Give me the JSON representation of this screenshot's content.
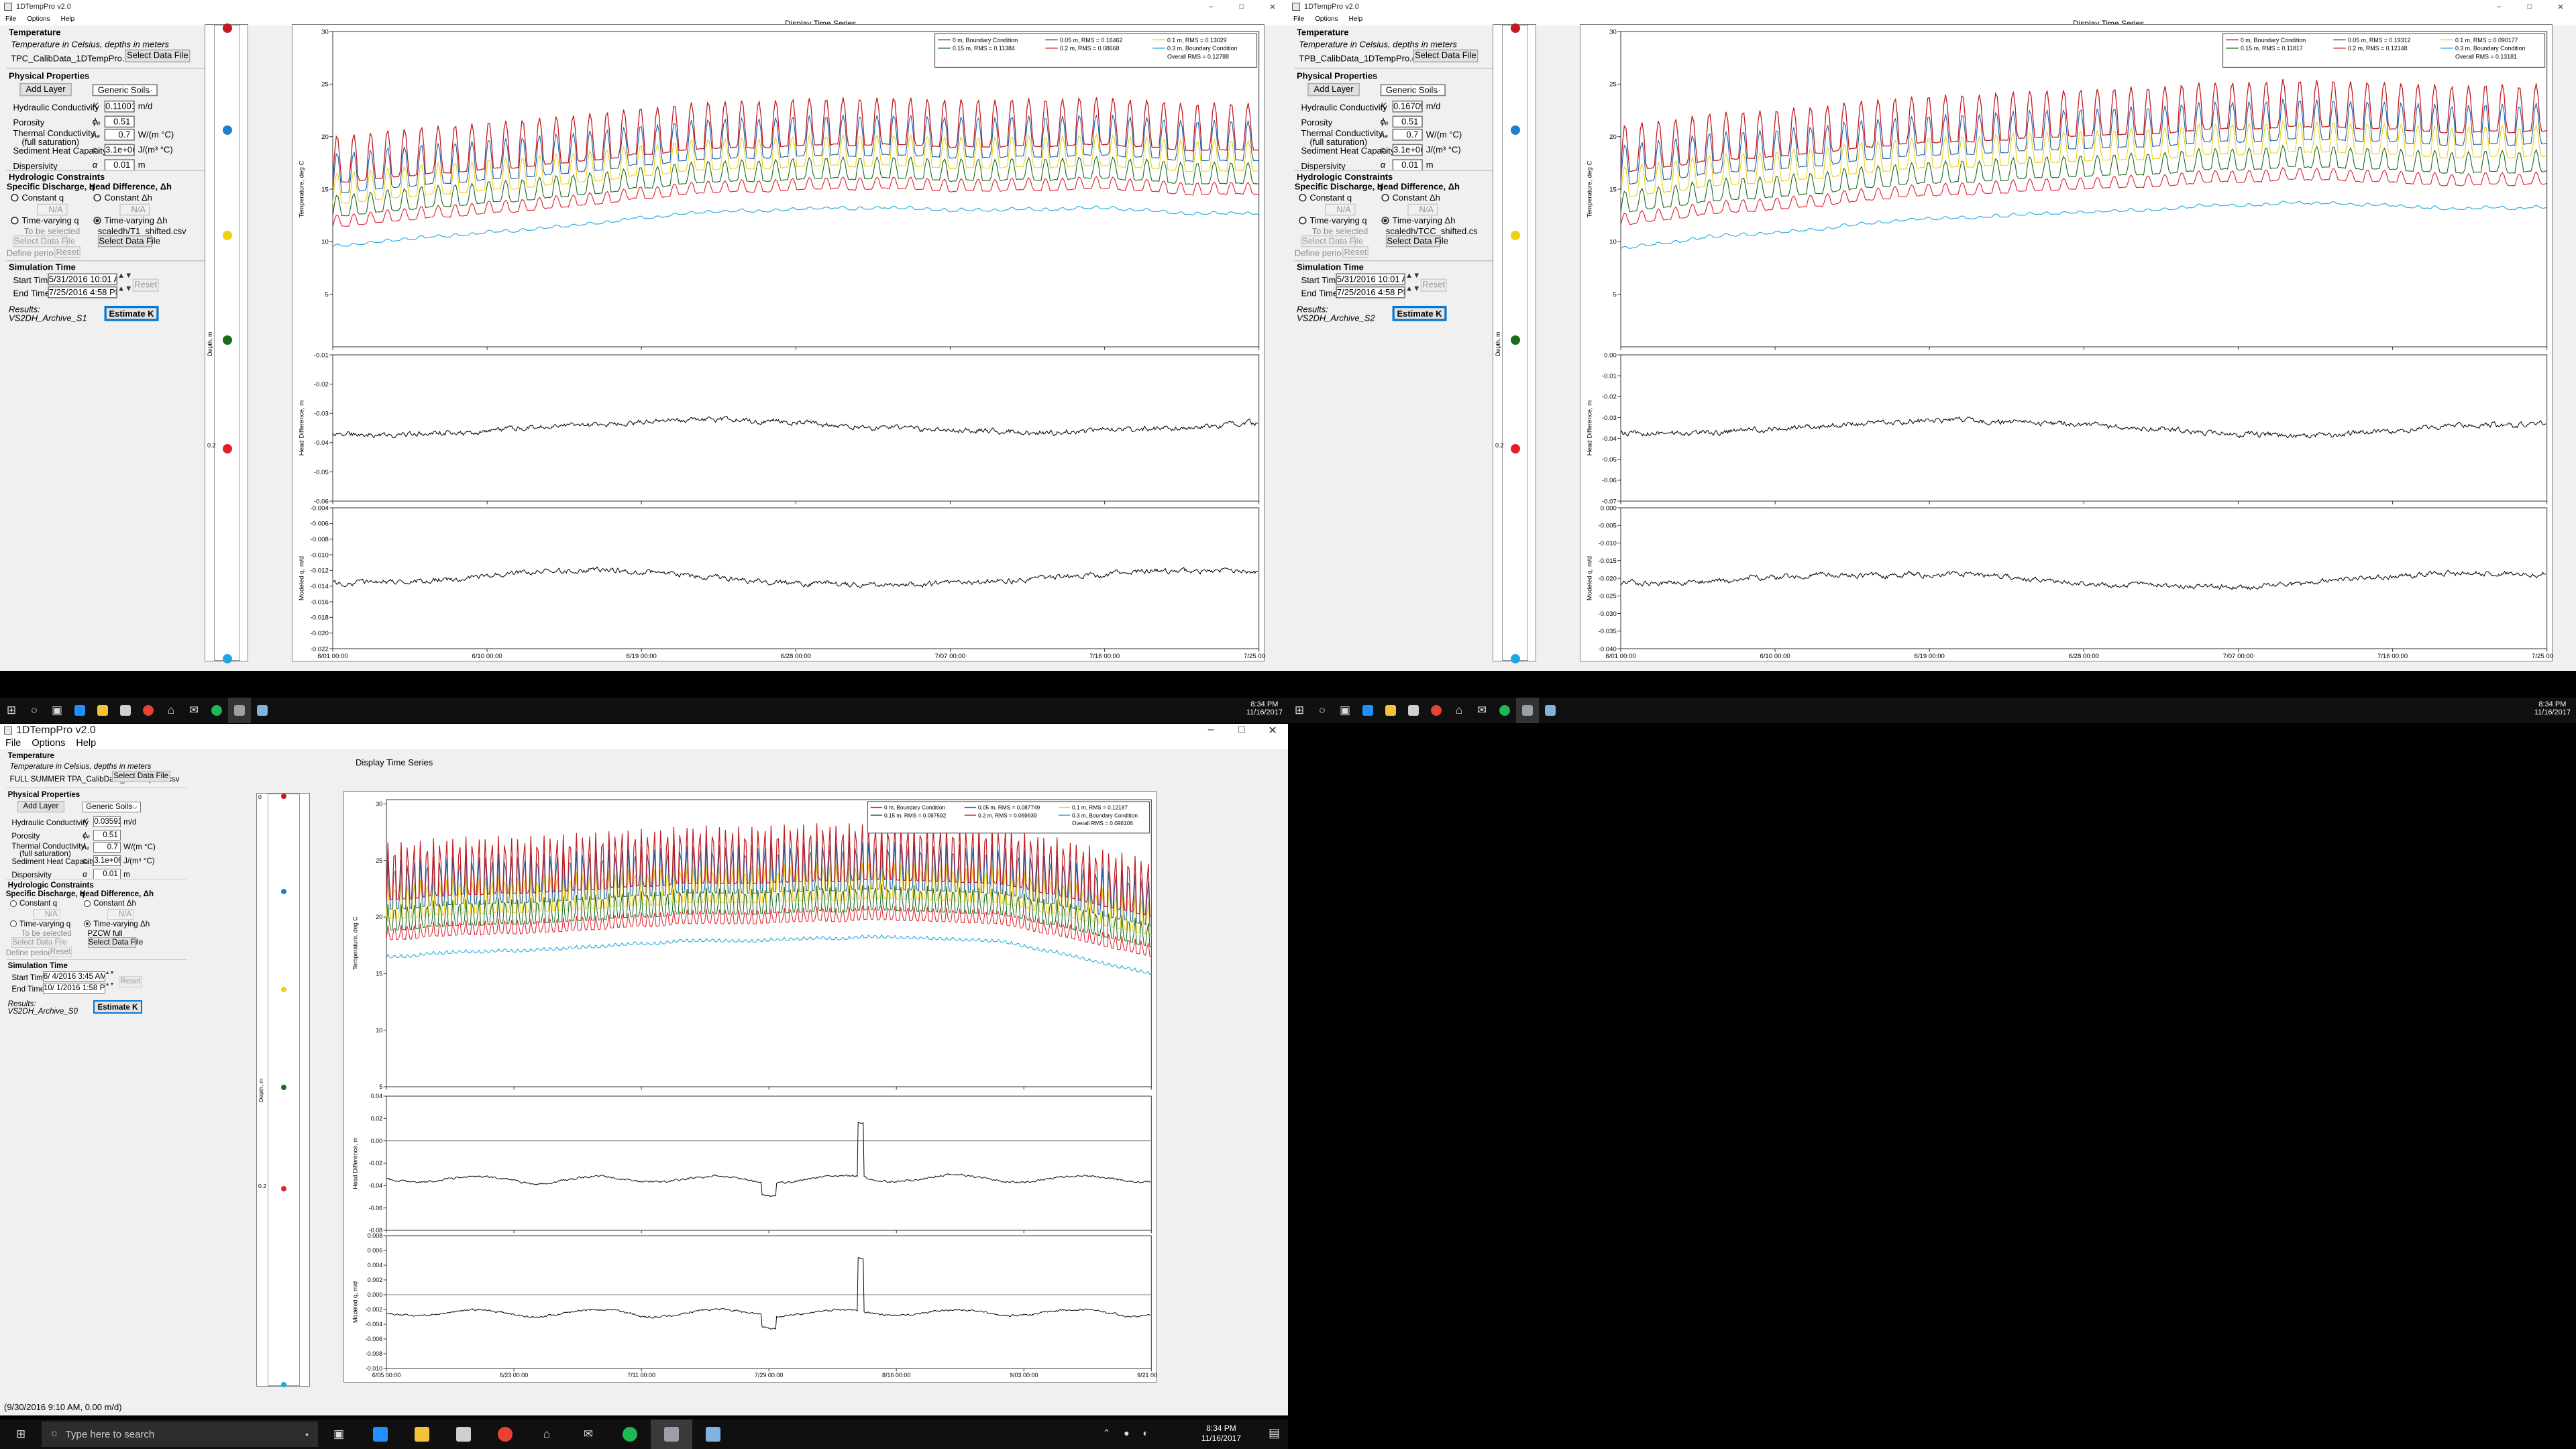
{
  "app": {
    "title": "1DTempPro v2.0",
    "menu": [
      "File",
      "Options",
      "Help"
    ],
    "window_controls": [
      "–",
      "□",
      "✕"
    ],
    "display_tab": "Display Time Series",
    "estimate_label": "Estimate K",
    "reset_label": "Reset",
    "select_data_label": "Select Data File",
    "add_layer_label": "Add Layer",
    "labels": {
      "temperature": "Temperature",
      "temp_note": "Temperature in Celsius, depths in meters",
      "physical": "Physical Properties",
      "hydraulic": "Hydraulic Conductivity",
      "porosity": "Porosity",
      "thermal1": "Thermal Conductivity",
      "thermal2": "(full saturation)",
      "heatcap": "Sediment Heat Capacity",
      "dispersivity": "Dispersivity",
      "hydrologic": "Hydrologic Constraints",
      "specific": "Specific Discharge, q",
      "headdiff": "Head Difference, Δh",
      "const_q": "Constant q",
      "const_h": "Constant Δh",
      "tv_q": "Time-varying q",
      "tv_h": "Time-varying Δh",
      "na": "N/A",
      "to_be_selected": "To be selected",
      "define_periods": "Define periods...",
      "simtime": "Simulation Time",
      "start": "Start Time",
      "end": "End Time",
      "results": "Results:",
      "sym_k": "K",
      "sym_phi": "ϕₑ",
      "sym_lambda": "λₑ",
      "sym_c": "cₑ",
      "sym_alpha": "α",
      "unit_k": "m/d",
      "unit_lambda": "W/(m °C)",
      "unit_c": "J/(m³ °C)",
      "unit_m": "m"
    },
    "depth_label": "Depth, m",
    "ylabels": {
      "temp": "Temperature, deg C",
      "head": "Head Difference, m",
      "flux": "Modeled q, m/d"
    }
  },
  "windows": [
    {
      "id": "w1",
      "file": "TPC_CalibData_1DTempPro.csv",
      "soil": "Generic Soils",
      "k": "0.11001",
      "porosity": "0.51",
      "lambda": "0.7",
      "heatcap": "3.1e+06",
      "dispersivity": "0.01",
      "head_file": "scaledh/T1_shifted.csv",
      "start": "5/31/2016 10:01 AM",
      "end": "7/25/2016 4:58 PM",
      "archive": "VS2DH_Archive_S1",
      "depth_tick": "0.2",
      "legend": [
        {
          "name": "0 m, Boundary Condition",
          "color": "#c41a1f"
        },
        {
          "name": "0.05 m, RMS = 0.16462",
          "color": "#1f5fa8"
        },
        {
          "name": "0.1 m, RMS = 0.13029",
          "color": "#f0d010"
        },
        {
          "name": "0.15 m, RMS = 0.11384",
          "color": "#1a6a1a"
        },
        {
          "name": "0.2 m, RMS = 0.08668",
          "color": "#e0202c"
        },
        {
          "name": "0.3 m, Boundary Condition",
          "color": "#20a8e0"
        }
      ],
      "overall": "Overall RMS = 0.12788",
      "x_ticks": [
        "6/01 00:00",
        "6/10 00:00",
        "6/19 00:00",
        "6/28 00:00",
        "7/07 00:00",
        "7/16 00:00",
        "7/25 00:00"
      ],
      "temp_ticks": [
        "5",
        "10",
        "15",
        "20",
        "25",
        "30"
      ],
      "head_ticks": [
        "-0.01",
        "-0.02",
        "-0.03",
        "-0.04",
        "-0.05",
        "-0.06"
      ],
      "flux_ticks": [
        "-0.004",
        "-0.006",
        "-0.008",
        "-0.010",
        "-0.012",
        "-0.014",
        "-0.016",
        "-0.018",
        "-0.020",
        "-0.022"
      ]
    },
    {
      "id": "w2",
      "file": "TPB_CalibData_1DTempPro.csv",
      "soil": "Generic Soils",
      "k": "0.16709",
      "porosity": "0.51",
      "lambda": "0.7",
      "heatcap": "3.1e+06",
      "dispersivity": "0.01",
      "head_file": "scaledh/TCC_shifted.cs",
      "start": "5/31/2016 10:01 AM",
      "end": "7/25/2016 4:58 PM",
      "archive": "VS2DH_Archive_S2",
      "depth_tick": "0.2",
      "legend": [
        {
          "name": "0 m, Boundary Condition",
          "color": "#c41a1f"
        },
        {
          "name": "0.05 m, RMS = 0.19312",
          "color": "#1f5fa8"
        },
        {
          "name": "0.1 m, RMS = 0.090177",
          "color": "#f0d010"
        },
        {
          "name": "0.15 m, RMS = 0.11817",
          "color": "#1a6a1a"
        },
        {
          "name": "0.2 m, RMS = 0.12148",
          "color": "#e0202c"
        },
        {
          "name": "0.3 m, Boundary Condition",
          "color": "#20a8e0"
        }
      ],
      "overall": "Overall RMS = 0.13181",
      "x_ticks": [
        "6/01 00:00",
        "6/10 00:00",
        "6/19 00:00",
        "6/28 00:00",
        "7/07 00:00",
        "7/16 00:00",
        "7/25 00:00"
      ],
      "temp_ticks": [
        "5",
        "10",
        "15",
        "20",
        "25",
        "30"
      ],
      "head_ticks": [
        "0.00",
        "-0.01",
        "-0.02",
        "-0.03",
        "-0.04",
        "-0.05",
        "-0.06",
        "-0.07"
      ],
      "flux_ticks": [
        "0.000",
        "-0.005",
        "-0.010",
        "-0.015",
        "-0.020",
        "-0.025",
        "-0.030",
        "-0.035",
        "-0.040"
      ]
    },
    {
      "id": "w3",
      "file": "FULL SUMMER TPA_CalibData_1DTempPro.csv",
      "soil": "Generic Soils",
      "k": "0.035917",
      "porosity": "0.51",
      "lambda": "0.7",
      "heatcap": "3.1e+06",
      "dispersivity": "0.01",
      "head_file": "PZCW full",
      "start": "6/ 4/2016  3:45 AM",
      "end": "10/ 1/2016  1:58 PM",
      "archive": "VS2DH_Archive_S0",
      "depth_tick": "0.2",
      "legend": [
        {
          "name": "0 m, Boundary Condition",
          "color": "#c41a1f"
        },
        {
          "name": "0.05 m, RMS = 0.087749",
          "color": "#1f5fa8"
        },
        {
          "name": "0.1 m, RMS = 0.12187",
          "color": "#f0d010"
        },
        {
          "name": "0.15 m, RMS = 0.097592",
          "color": "#1a6a1a"
        },
        {
          "name": "0.2 m, RMS = 0.069639",
          "color": "#e0202c"
        },
        {
          "name": "0.3 m, Boundary Condition",
          "color": "#20a8e0"
        }
      ],
      "overall": "Overall RMS = 0.096106",
      "x_ticks": [
        "6/05 00:00",
        "6/23 00:00",
        "7/11 00:00",
        "7/29 00:00",
        "8/16 00:00",
        "9/03 00:00",
        "9/21 00:00"
      ],
      "temp_ticks": [
        "5",
        "10",
        "15",
        "20",
        "25",
        "30"
      ],
      "head_ticks": [
        "0.04",
        "0.02",
        "0.00",
        "-0.02",
        "-0.04",
        "-0.06",
        "-0.08"
      ],
      "flux_ticks": [
        "0.008",
        "0.006",
        "0.004",
        "0.002",
        "0.000",
        "-0.002",
        "-0.004",
        "-0.006",
        "-0.008",
        "-0.010"
      ],
      "status": "(9/30/2016 9:10 AM, 0.00 m/d)"
    }
  ],
  "taskbar": {
    "search_placeholder": "Type here to search",
    "time": "8:34 PM",
    "date": "11/16/2017",
    "icons": [
      "windows-icon",
      "cortana-icon",
      "task-view-icon",
      "edge-icon",
      "file-explorer-icon",
      "store-icon",
      "chrome-icon",
      "home-icon",
      "mail-icon",
      "spotify-icon",
      "app-chart-icon",
      "app-doc-icon"
    ],
    "colors": {
      "edge": "#1e90ff",
      "explorer": "#f2c23a",
      "chrome": "#e94235",
      "spotify": "#1db954"
    }
  }
}
